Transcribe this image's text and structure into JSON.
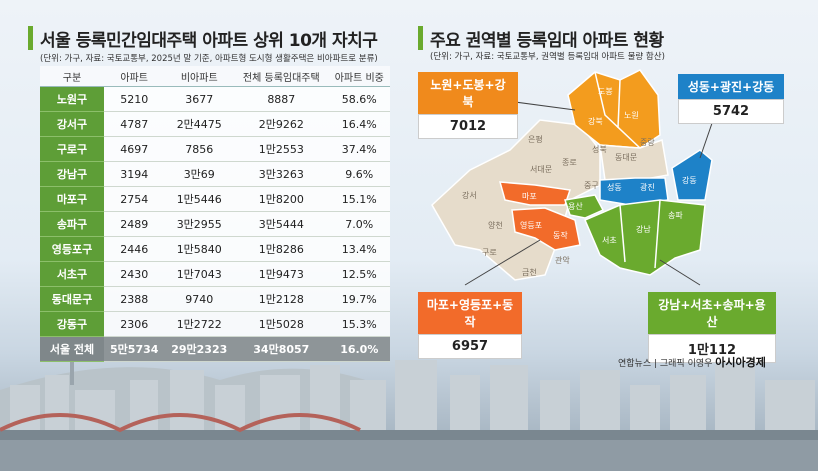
{
  "left": {
    "title": "서울 등록민간임대주택 아파트 상위 10개 자치구",
    "subtitle": "(단위: 가구, 자료: 국토교통부, 2025년 말 기준, 아파트형 도시형 생활주택은 비아파트로 분류)",
    "headers": [
      "구분",
      "아파트",
      "비아파트",
      "전체 등록임대주택",
      "아파트 비중"
    ],
    "rows": [
      [
        "노원구",
        "5210",
        "3677",
        "8887",
        "58.6%"
      ],
      [
        "강서구",
        "4787",
        "2만4475",
        "2만9262",
        "16.4%"
      ],
      [
        "구로구",
        "4697",
        "7856",
        "1만2553",
        "37.4%"
      ],
      [
        "강남구",
        "3194",
        "3만69",
        "3만3263",
        "9.6%"
      ],
      [
        "마포구",
        "2754",
        "1만5446",
        "1만8200",
        "15.1%"
      ],
      [
        "송파구",
        "2489",
        "3만2955",
        "3만5444",
        "7.0%"
      ],
      [
        "영등포구",
        "2446",
        "1만5840",
        "1만8286",
        "13.4%"
      ],
      [
        "서초구",
        "2430",
        "1만7043",
        "1만9473",
        "12.5%"
      ],
      [
        "동대문구",
        "2388",
        "9740",
        "1만2128",
        "19.7%"
      ],
      [
        "강동구",
        "2306",
        "1만2722",
        "1만5028",
        "15.3%"
      ]
    ],
    "total": [
      "서울 전체",
      "5만5734",
      "29만2323",
      "34만8057",
      "16.0%"
    ]
  },
  "chart_data": {
    "type": "table",
    "title": "서울 등록민간임대주택 아파트 상위 10개 자치구",
    "columns": [
      "구분",
      "아파트",
      "비아파트",
      "전체 등록임대주택",
      "아파트 비중"
    ],
    "categories": [
      "노원구",
      "강서구",
      "구로구",
      "강남구",
      "마포구",
      "송파구",
      "영등포구",
      "서초구",
      "동대문구",
      "강동구"
    ],
    "series": [
      {
        "name": "아파트",
        "values": [
          5210,
          4787,
          4697,
          3194,
          2754,
          2489,
          2446,
          2430,
          2388,
          2306
        ]
      },
      {
        "name": "비아파트",
        "values": [
          3677,
          24475,
          7856,
          30069,
          15446,
          32955,
          15840,
          17043,
          9740,
          12722
        ]
      },
      {
        "name": "전체 등록임대주택",
        "values": [
          8887,
          29262,
          12553,
          33263,
          18200,
          35444,
          18286,
          19473,
          12128,
          15028
        ]
      },
      {
        "name": "아파트 비중",
        "values": [
          58.6,
          16.4,
          37.4,
          9.6,
          15.1,
          7.0,
          13.4,
          12.5,
          19.7,
          15.3
        ]
      }
    ],
    "total": {
      "label": "서울 전체",
      "values": [
        55734,
        292323,
        348057,
        16.0
      ]
    },
    "regions": [
      {
        "name": "노원+도봉+강북",
        "value": "7012",
        "color": "#f08a1c"
      },
      {
        "name": "성동+광진+강동",
        "value": "5742",
        "color": "#1e82c8"
      },
      {
        "name": "마포+영등포+동작",
        "value": "6957",
        "color": "#f26b2a"
      },
      {
        "name": "강남+서초+송파+용산",
        "value": "1만112",
        "color": "#6aaa2e"
      }
    ]
  },
  "right": {
    "title": "주요 권역별 등록임대 아파트 현황",
    "subtitle": "(단위: 가구, 자료: 국토교통부, 권역별 등록임대 아파트 물량 합산)",
    "map_labels": {
      "dobong": "도봉",
      "gangbuk": "강북",
      "nowon": "노원",
      "eunpyeong": "은평",
      "seongbuk": "성북",
      "jungnang": "중랑",
      "jongno": "종로",
      "dongdaemun": "동대문",
      "seodaemun": "서대문",
      "jung": "중구",
      "mapo": "마포",
      "seongdong": "성동",
      "gwangjin": "광진",
      "gangdong": "강동",
      "gangseo": "강서",
      "yongsan": "용산",
      "yangcheon": "양천",
      "yeongdeungpo": "영등포",
      "dongjak": "동작",
      "songpa": "송파",
      "gangnam": "강남",
      "seocho": "서초",
      "guro": "구로",
      "geumcheon": "금천",
      "gwanak": "관악"
    }
  },
  "credit": {
    "text": "연합뉴스 | 그래픽 이영우",
    "brand": "아시아경제"
  }
}
